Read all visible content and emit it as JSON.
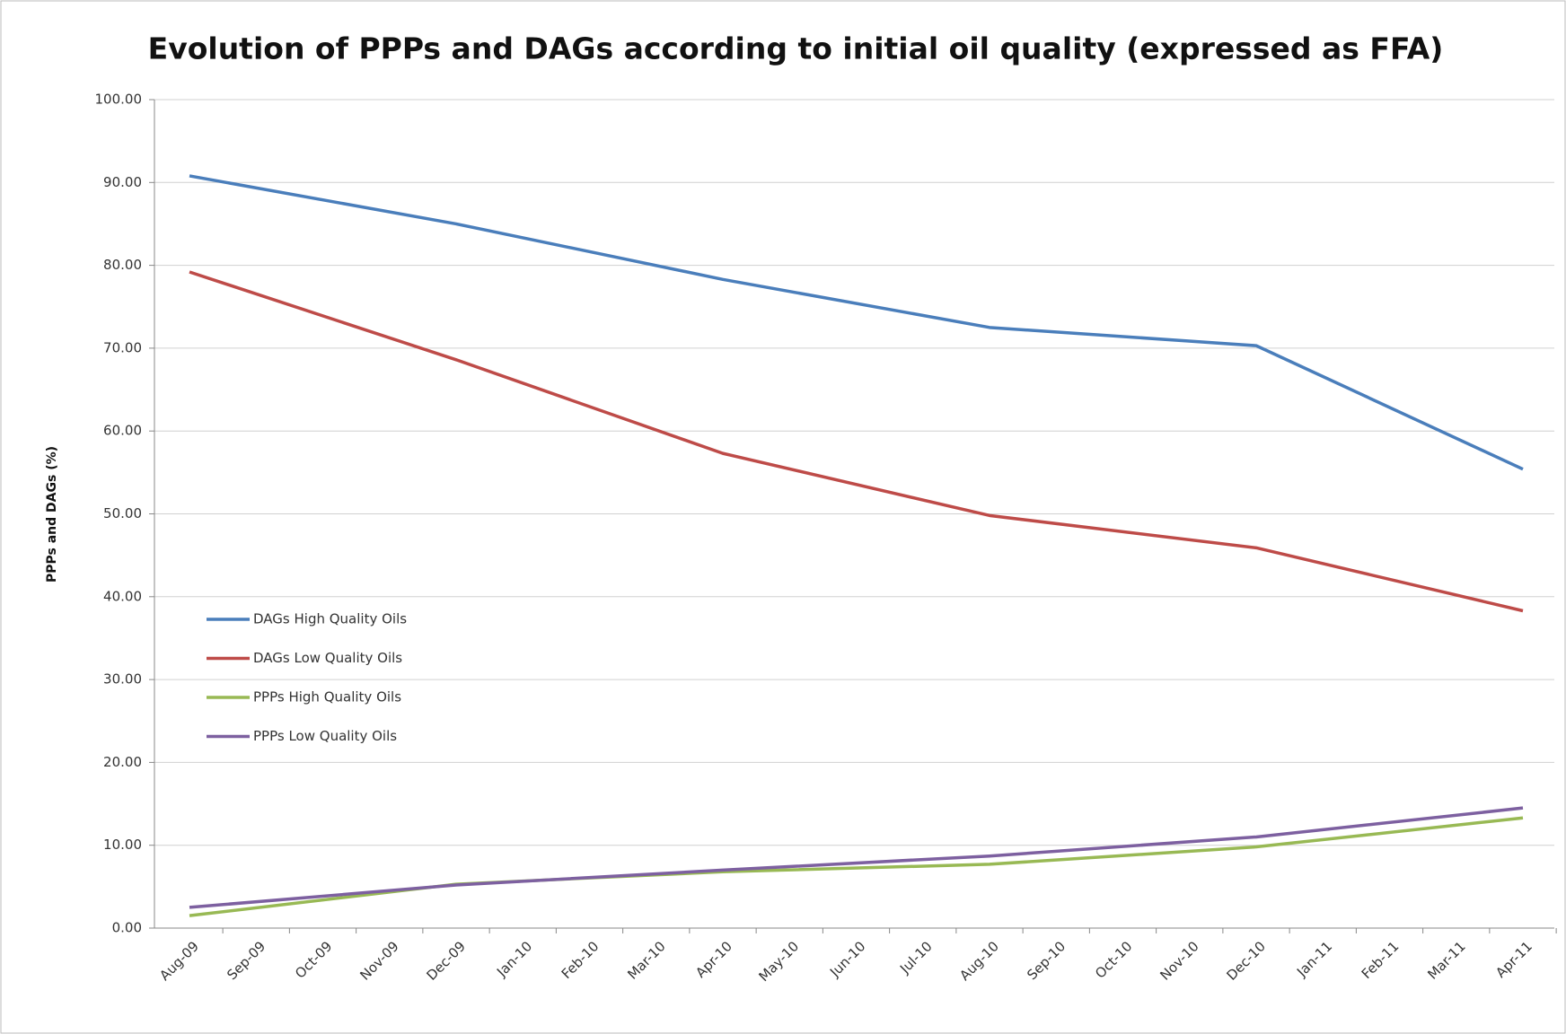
{
  "chart_data": {
    "type": "line",
    "title": "Evolution of PPPs and DAGs according to initial oil quality (expressed as FFA)",
    "y_label": "PPPs and DAGs (%)",
    "categories": [
      "Aug-09",
      "Sep-09",
      "Oct-09",
      "Nov-09",
      "Dec-09",
      "Jan-10",
      "Feb-10",
      "Mar-10",
      "Apr-10",
      "May-10",
      "Jun-10",
      "Jul-10",
      "Aug-10",
      "Sep-10",
      "Oct-10",
      "Nov-10",
      "Dec-10",
      "Jan-11",
      "Feb-11",
      "Mar-11",
      "Apr-11"
    ],
    "x": [
      "Aug-09",
      "Dec-09",
      "Apr-10",
      "Aug-10",
      "Dec-10",
      "Apr-11"
    ],
    "series": [
      {
        "name": "DAGs High Quality Oils",
        "color": "#4a7ebb",
        "values": [
          90.8,
          85.0,
          78.3,
          72.5,
          70.3,
          55.4
        ]
      },
      {
        "name": "DAGs Low Quality Oils",
        "color": "#be4b48",
        "values": [
          79.2,
          68.6,
          57.3,
          49.8,
          45.9,
          38.3
        ]
      },
      {
        "name": "PPPs High Quality Oils",
        "color": "#98b954",
        "values": [
          1.5,
          5.3,
          6.8,
          7.7,
          9.8,
          13.3
        ]
      },
      {
        "name": "PPPs Low Quality Oils",
        "color": "#7d60a0",
        "values": [
          2.5,
          5.2,
          7.0,
          8.7,
          11.0,
          14.5
        ]
      }
    ],
    "ylim": [
      0,
      100
    ],
    "yticks": [
      {
        "value": 0,
        "label": "0.00"
      },
      {
        "value": 10,
        "label": "10.00"
      },
      {
        "value": 20,
        "label": "20.00"
      },
      {
        "value": 30,
        "label": "30.00"
      },
      {
        "value": 40,
        "label": "40.00"
      },
      {
        "value": 50,
        "label": "50.00"
      },
      {
        "value": 60,
        "label": "60.00"
      },
      {
        "value": 70,
        "label": "70.00"
      },
      {
        "value": 80,
        "label": "80.00"
      },
      {
        "value": 90,
        "label": "90.00"
      },
      {
        "value": 100,
        "label": "100.00"
      }
    ],
    "grid": true,
    "legend": "lower-left"
  }
}
